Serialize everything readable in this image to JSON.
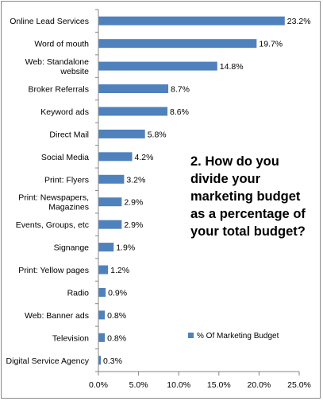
{
  "chart_data": {
    "type": "bar",
    "orientation": "horizontal",
    "categories": [
      [
        "Online Lead Services"
      ],
      [
        "Word of mouth"
      ],
      [
        "Web: Standalone",
        "website"
      ],
      [
        "Broker Referrals"
      ],
      [
        "Keyword ads"
      ],
      [
        "Direct Mail"
      ],
      [
        "Social Media"
      ],
      [
        "Print: Flyers"
      ],
      [
        "Print: Newspapers,",
        "Magazines"
      ],
      [
        "Events, Groups, etc"
      ],
      [
        "Signange"
      ],
      [
        "Print: Yellow pages"
      ],
      [
        "Radio"
      ],
      [
        "Web: Banner ads"
      ],
      [
        "Television"
      ],
      [
        "Digital Service Agency"
      ]
    ],
    "series": [
      {
        "name": "% Of Marketing Budget",
        "values": [
          23.2,
          19.7,
          14.8,
          8.7,
          8.6,
          5.8,
          4.2,
          3.2,
          2.9,
          2.9,
          1.9,
          1.2,
          0.9,
          0.8,
          0.8,
          0.3
        ],
        "value_labels": [
          "23.2%",
          "19.7%",
          "14.8%",
          "8.7%",
          "8.6%",
          "5.8%",
          "4.2%",
          "3.2%",
          "2.9%",
          "2.9%",
          "1.9%",
          "1.2%",
          "0.9%",
          "0.8%",
          "0.8%",
          "0.3%"
        ],
        "color": "#4F81BD"
      }
    ],
    "xlim": [
      0,
      25
    ],
    "x_ticks": [
      0,
      5,
      10,
      15,
      20,
      25
    ],
    "x_tick_labels": [
      "0.0%",
      "5.0%",
      "10.0%",
      "15.0%",
      "20.0%",
      "25.0%"
    ],
    "grid": false,
    "legend_position": "right",
    "annotation_lines": [
      "2. How do you",
      "divide your",
      "marketing budget",
      "as a percentage of",
      "your total budget?"
    ]
  }
}
